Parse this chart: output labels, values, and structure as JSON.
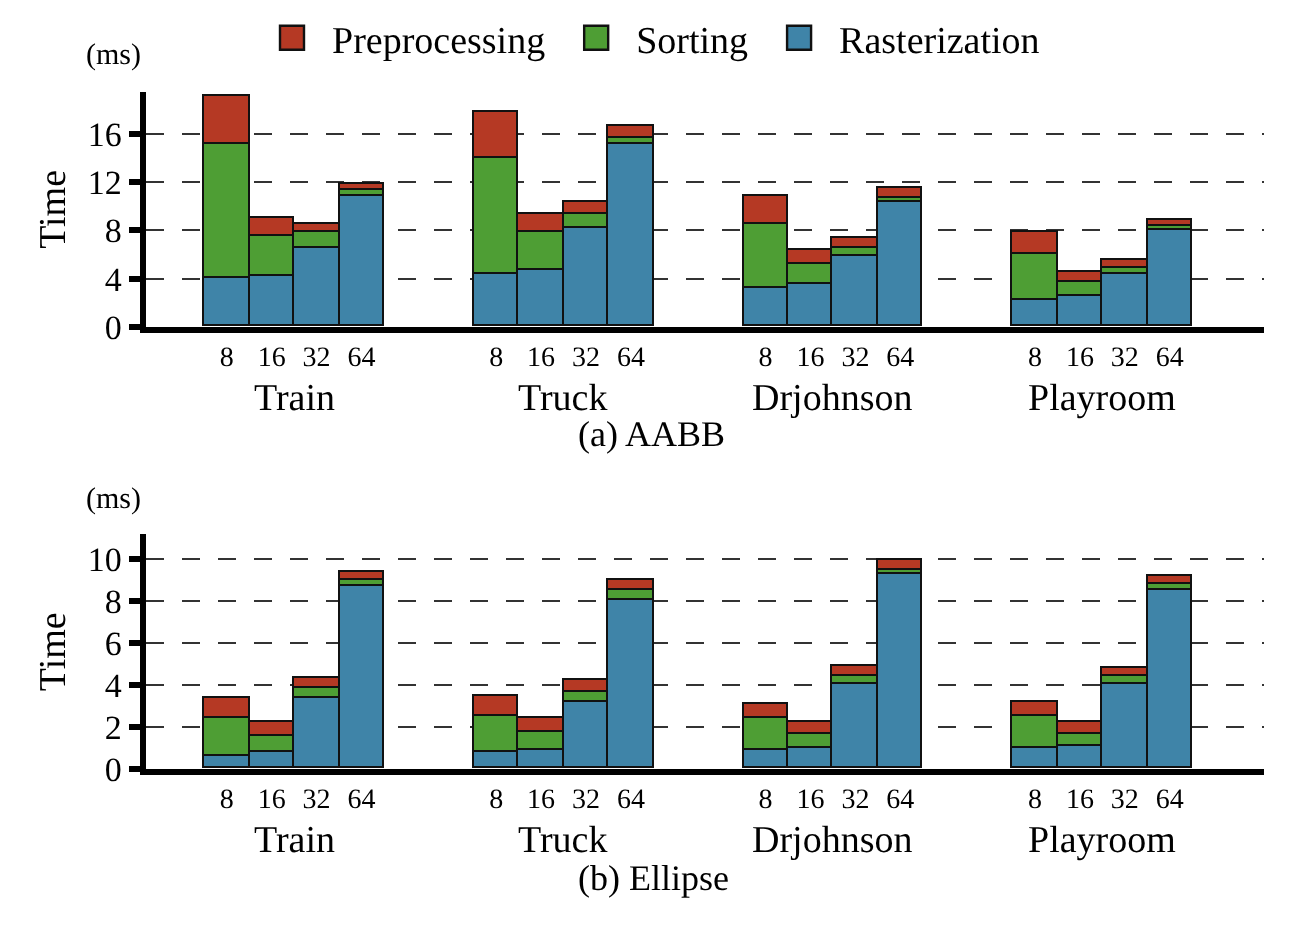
{
  "chart_data": [
    {
      "type": "bar",
      "stacked": true,
      "title": "(a) AABB",
      "ylabel": "Time",
      "legend": "top",
      "grid": "y",
      "line_style": "dashed",
      "categories": [
        "8",
        "16",
        "32",
        "64",
        null,
        null,
        "8",
        "16",
        "32",
        "64",
        null,
        null,
        "8",
        "16",
        "32",
        "64",
        null,
        null,
        "8",
        "16",
        "32",
        "64"
      ],
      "annotations": [
        "(ms)",
        "Train",
        "Truck",
        "Drjohnson",
        "Playroom"
      ],
      "ylim": [
        0,
        19.5
      ],
      "yticks": [
        0,
        4,
        8,
        12,
        16
      ],
      "series": [
        {
          "name": "Rasterization",
          "color": "#3f84a8",
          "values": [
            4.1,
            4.3,
            6.6,
            10.8,
            null,
            null,
            4.4,
            4.8,
            8.2,
            15.1,
            null,
            null,
            3.2,
            3.5,
            5.8,
            10.4,
            null,
            null,
            2.3,
            2.6,
            4.4,
            8.0
          ]
        },
        {
          "name": "Sorting",
          "color": "#4e9e34",
          "values": [
            11.1,
            3.3,
            1.2,
            0.5,
            null,
            null,
            9.6,
            3.0,
            1.1,
            0.5,
            null,
            null,
            5.3,
            1.7,
            0.7,
            0.3,
            null,
            null,
            3.8,
            1.2,
            0.5,
            0.3
          ]
        },
        {
          "name": "Preprocessing",
          "color": "#b53924",
          "values": [
            3.9,
            1.5,
            0.8,
            0.6,
            null,
            null,
            3.9,
            1.6,
            1.1,
            1.0,
            null,
            null,
            2.3,
            1.1,
            0.8,
            0.8,
            null,
            null,
            1.8,
            0.8,
            0.6,
            0.5
          ]
        }
      ]
    },
    {
      "type": "bar",
      "stacked": true,
      "title": "(b) Ellipse",
      "ylabel": "Time",
      "grid": "y",
      "line_style": "dashed",
      "categories": [
        "8",
        "16",
        "32",
        "64",
        null,
        null,
        "8",
        "16",
        "32",
        "64",
        null,
        null,
        "8",
        "16",
        "32",
        "64",
        null,
        null,
        "8",
        "16",
        "32",
        "64"
      ],
      "annotations": [
        "(ms)",
        "Train",
        "Truck",
        "Drjohnson",
        "Playroom"
      ],
      "ylim": [
        0,
        11.2
      ],
      "yticks": [
        0,
        2,
        4,
        6,
        8,
        10
      ],
      "series": [
        {
          "color": "#3f84a8",
          "values": [
            0.6,
            0.8,
            3.4,
            8.7,
            null,
            null,
            0.8,
            0.9,
            3.2,
            8.1,
            null,
            null,
            0.9,
            1.0,
            4.0,
            9.3,
            null,
            null,
            1.0,
            1.1,
            4.0,
            8.5
          ]
        },
        {
          "color": "#4e9e34",
          "values": [
            1.8,
            0.8,
            0.5,
            0.3,
            null,
            null,
            1.7,
            0.9,
            0.5,
            0.4,
            null,
            null,
            1.5,
            0.7,
            0.4,
            0.2,
            null,
            null,
            1.5,
            0.6,
            0.4,
            0.3
          ]
        },
        {
          "color": "#b53924",
          "values": [
            1.0,
            0.6,
            0.4,
            0.4,
            null,
            null,
            1.0,
            0.6,
            0.5,
            0.5,
            null,
            null,
            0.7,
            0.5,
            0.5,
            0.5,
            null,
            null,
            0.7,
            0.5,
            0.4,
            0.4
          ]
        }
      ]
    }
  ]
}
